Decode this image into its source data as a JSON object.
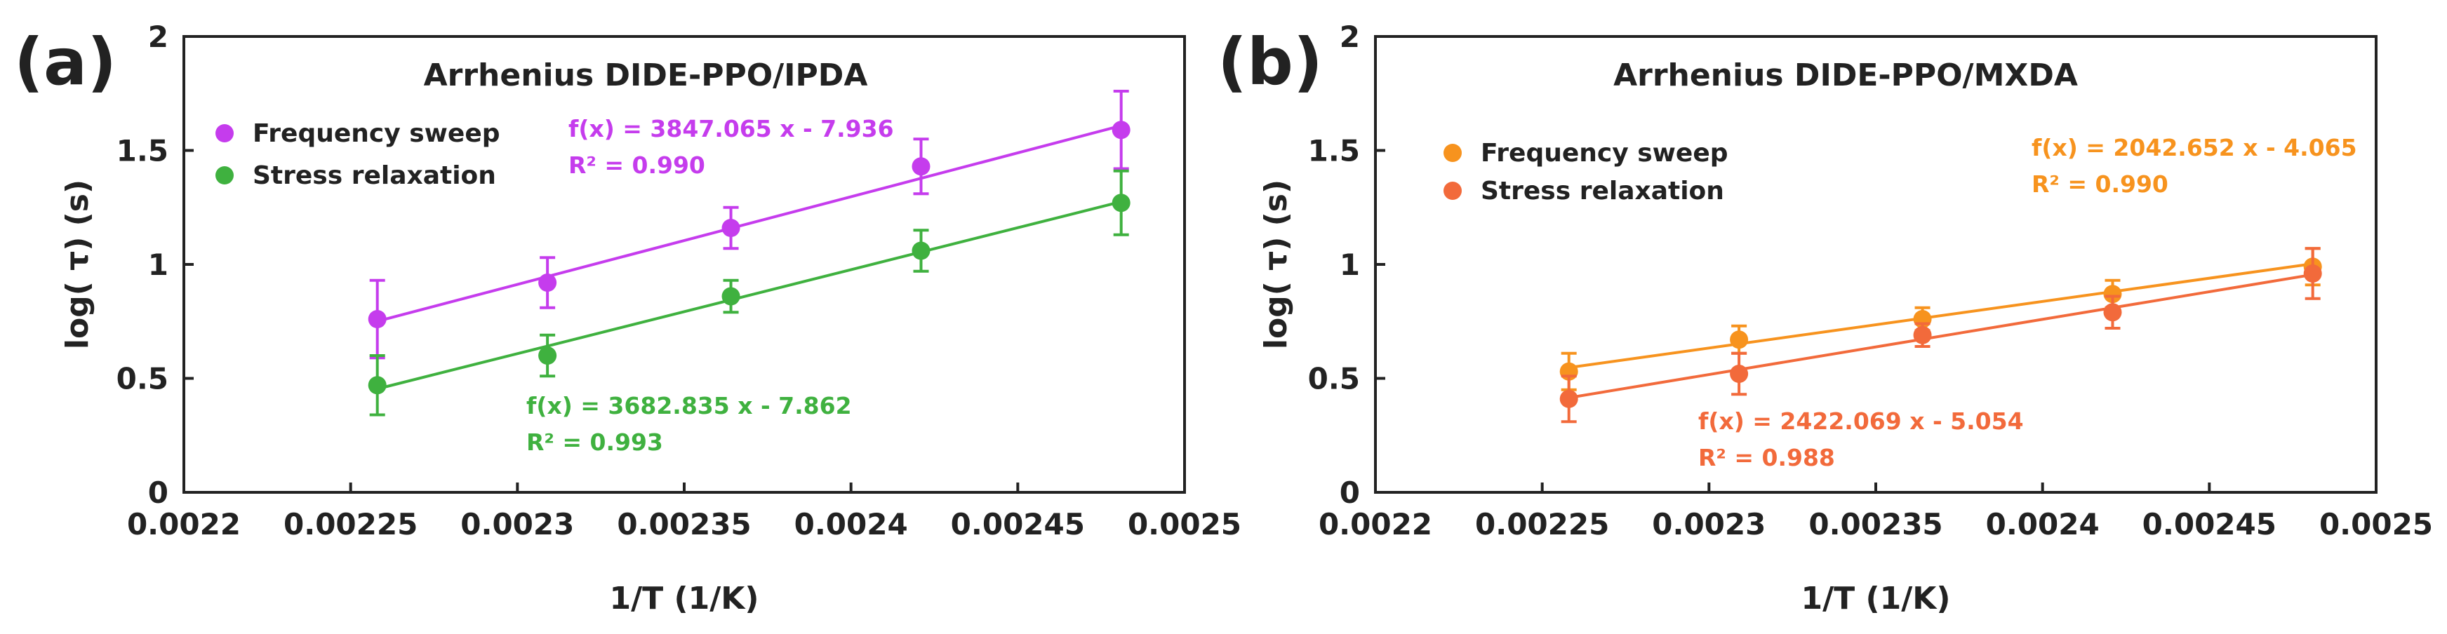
{
  "chart_data": [
    {
      "panel_label": "(a)",
      "type": "scatter",
      "title": "Arrhenius DIDE-PPO/IPDA",
      "xlabel": "1/T (1/K)",
      "ylabel": "log( τ) (s)",
      "xlim": [
        0.0022,
        0.0025
      ],
      "ylim": [
        0,
        2
      ],
      "x_ticks": [
        0.0022,
        0.00225,
        0.0023,
        0.00235,
        0.0024,
        0.00245,
        0.0025
      ],
      "x_tick_labels": [
        "0.0022",
        "0.00225",
        "0.0023",
        "0.00235",
        "0.0024",
        "0.00245",
        "0.0025"
      ],
      "y_ticks": [
        0,
        0.5,
        1,
        1.5,
        2
      ],
      "y_tick_labels": [
        "0",
        "0.5",
        "1",
        "1.5",
        "2"
      ],
      "grid": false,
      "legend_position": "top-left",
      "series": [
        {
          "name": "Frequency sweep",
          "color": "#c53ced",
          "x": [
            0.002258,
            0.002309,
            0.002364,
            0.002421,
            0.002481
          ],
          "y": [
            0.76,
            0.92,
            1.16,
            1.43,
            1.59
          ],
          "error": [
            0.17,
            0.11,
            0.09,
            0.12,
            0.17
          ],
          "fit": {
            "slope": 3847.065,
            "intercept": -7.936,
            "x_range": [
              0.002258,
              0.002481
            ]
          },
          "equation": "f(x) = 3847.065 x - 7.936",
          "r2": "R² = 0.990"
        },
        {
          "name": "Stress relaxation",
          "color": "#3fb13f",
          "x": [
            0.002258,
            0.002309,
            0.002364,
            0.002421,
            0.002481
          ],
          "y": [
            0.47,
            0.6,
            0.86,
            1.06,
            1.27
          ],
          "error": [
            0.13,
            0.09,
            0.07,
            0.09,
            0.14
          ],
          "fit": {
            "slope": 3682.835,
            "intercept": -7.862,
            "x_range": [
              0.002258,
              0.002481
            ]
          },
          "equation": "f(x) = 3682.835 x - 7.862",
          "r2": "R² = 0.993"
        }
      ]
    },
    {
      "panel_label": "(b)",
      "type": "scatter",
      "title": "Arrhenius DIDE-PPO/MXDA",
      "xlabel": "1/T (1/K)",
      "ylabel": "log( τ) (s)",
      "xlim": [
        0.0022,
        0.0025
      ],
      "ylim": [
        0,
        2
      ],
      "x_ticks": [
        0.0022,
        0.00225,
        0.0023,
        0.00235,
        0.0024,
        0.00245,
        0.0025
      ],
      "x_tick_labels": [
        "0.0022",
        "0.00225",
        "0.0023",
        "0.00235",
        "0.0024",
        "0.00245",
        "0.0025"
      ],
      "y_ticks": [
        0,
        0.5,
        1,
        1.5,
        2
      ],
      "y_tick_labels": [
        "0",
        "0.5",
        "1",
        "1.5",
        "2"
      ],
      "grid": false,
      "legend_position": "top-left",
      "series": [
        {
          "name": "Frequency sweep",
          "color": "#f7931e",
          "x": [
            0.002258,
            0.002309,
            0.002364,
            0.002421,
            0.002481
          ],
          "y": [
            0.53,
            0.67,
            0.76,
            0.87,
            0.99
          ],
          "error": [
            0.08,
            0.06,
            0.05,
            0.06,
            0.08
          ],
          "fit": {
            "slope": 2042.652,
            "intercept": -4.065,
            "x_range": [
              0.002258,
              0.002481
            ]
          },
          "equation": "f(x) = 2042.652 x - 4.065",
          "r2": "R² = 0.990"
        },
        {
          "name": "Stress relaxation",
          "color": "#f26a3b",
          "x": [
            0.002258,
            0.002309,
            0.002364,
            0.002421,
            0.002481
          ],
          "y": [
            0.41,
            0.52,
            0.69,
            0.79,
            0.96
          ],
          "error": [
            0.1,
            0.09,
            0.05,
            0.07,
            0.11
          ],
          "fit": {
            "slope": 2422.069,
            "intercept": -5.054,
            "x_range": [
              0.002258,
              0.002481
            ]
          },
          "equation": "f(x) = 2422.069 x - 5.054",
          "r2": "R² = 0.988"
        }
      ]
    }
  ]
}
